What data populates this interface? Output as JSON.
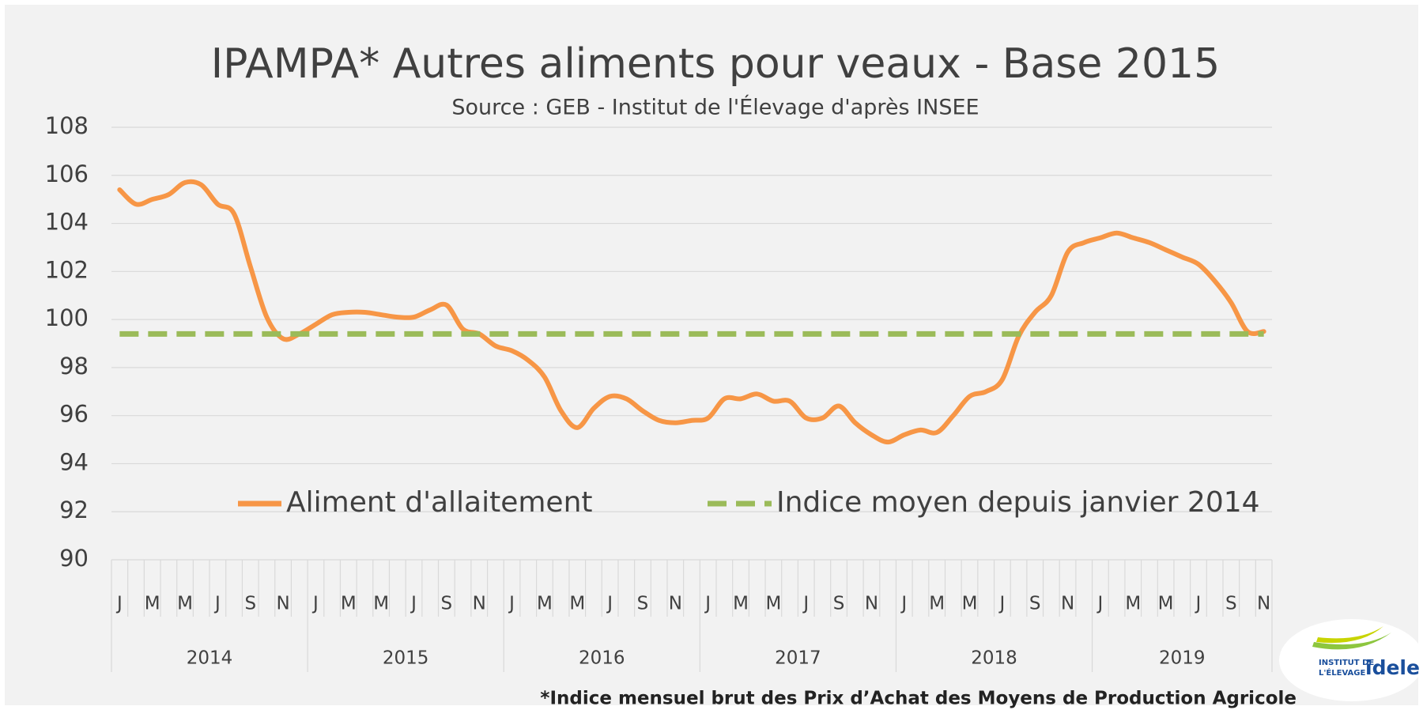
{
  "chart_data": {
    "type": "line",
    "title": "IPAMPA* Autres aliments pour veaux - Base 2015",
    "subtitle": "Source : GEB - Institut de l'Élevage d'après INSEE",
    "footnote": "*Indice mensuel brut des Prix d’Achat des Moyens de Production Agricole",
    "categories": [
      "J",
      null,
      "M",
      null,
      "M",
      null,
      "J",
      null,
      "S",
      null,
      "N",
      null,
      "J",
      null,
      "M",
      null,
      "M",
      null,
      "J",
      null,
      "S",
      null,
      "N",
      null,
      "J",
      null,
      "M",
      null,
      "M",
      null,
      "J",
      null,
      "S",
      null,
      "N",
      null,
      "J",
      null,
      "M",
      null,
      "M",
      null,
      "J",
      null,
      "S",
      null,
      "N",
      null,
      "J",
      null,
      "M",
      null,
      "M",
      null,
      "J",
      null,
      "S",
      null,
      "N",
      null,
      "J",
      null,
      "M",
      null,
      "M",
      null,
      "J",
      null,
      "S",
      null,
      "N"
    ],
    "years": [
      "2014",
      "2015",
      "2016",
      "2017",
      "2018",
      "2019"
    ],
    "series": [
      {
        "name": "Aliment d'allaitement",
        "color": "#f79646",
        "style": "solid",
        "values": [
          105.4,
          104.8,
          105.0,
          105.2,
          105.7,
          105.6,
          104.8,
          104.4,
          102.2,
          100.1,
          99.2,
          99.4,
          99.8,
          100.2,
          100.3,
          100.3,
          100.2,
          100.1,
          100.1,
          100.4,
          100.6,
          99.6,
          99.4,
          98.9,
          98.7,
          98.3,
          97.6,
          96.2,
          95.5,
          96.3,
          96.8,
          96.7,
          96.2,
          95.8,
          95.7,
          95.8,
          95.9,
          96.7,
          96.7,
          96.9,
          96.6,
          96.6,
          95.9,
          95.9,
          96.4,
          95.7,
          95.2,
          94.9,
          95.2,
          95.4,
          95.3,
          96.0,
          96.8,
          97.0,
          97.5,
          99.3,
          100.3,
          101.0,
          102.8,
          103.2,
          103.4,
          103.6,
          103.4,
          103.2,
          102.9,
          102.6,
          102.3,
          101.6,
          100.7,
          99.5,
          99.5
        ]
      },
      {
        "name": "Indice moyen depuis janvier 2014",
        "color": "#9bbb59",
        "style": "dashed",
        "values": [
          99.4,
          99.4,
          99.4,
          99.4,
          99.4,
          99.4,
          99.4,
          99.4,
          99.4,
          99.4,
          99.4,
          99.4,
          99.4,
          99.4,
          99.4,
          99.4,
          99.4,
          99.4,
          99.4,
          99.4,
          99.4,
          99.4,
          99.4,
          99.4,
          99.4,
          99.4,
          99.4,
          99.4,
          99.4,
          99.4,
          99.4,
          99.4,
          99.4,
          99.4,
          99.4,
          99.4,
          99.4,
          99.4,
          99.4,
          99.4,
          99.4,
          99.4,
          99.4,
          99.4,
          99.4,
          99.4,
          99.4,
          99.4,
          99.4,
          99.4,
          99.4,
          99.4,
          99.4,
          99.4,
          99.4,
          99.4,
          99.4,
          99.4,
          99.4,
          99.4,
          99.4,
          99.4,
          99.4,
          99.4,
          99.4,
          99.4,
          99.4,
          99.4,
          99.4,
          99.4,
          99.4
        ]
      }
    ],
    "ylim": [
      90,
      108
    ],
    "yticks": [
      90,
      92,
      94,
      96,
      98,
      100,
      102,
      104,
      106,
      108
    ],
    "grid": true,
    "legend": "bottom"
  },
  "logo": {
    "line1": "INSTITUT DE",
    "line2": "L'ÉLEVAGE",
    "brand": "idele"
  }
}
